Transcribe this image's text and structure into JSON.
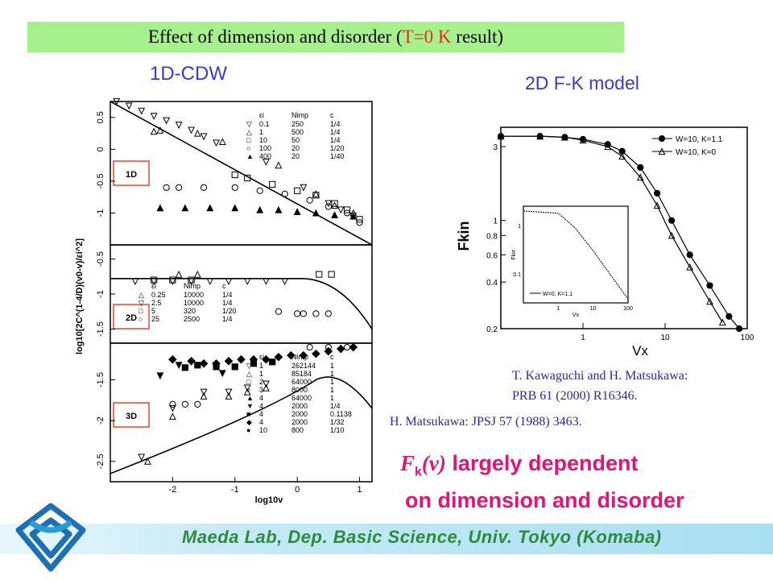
{
  "slide": {
    "title_prefix": "Effect of dimension and disorder (",
    "title_highlight": "T=0 K",
    "title_suffix": " result)",
    "label_left": "1D-CDW",
    "label_right": "2D F-K model",
    "ref_kawaguchi_line1": "T. Kawaguchi  and H. Matsukawa:",
    "ref_kawaguchi_line2": "PRB 61 (2000) R16346.",
    "ref_matsukawa": "H. Matsukawa: JPSJ 57 (1988) 3463.",
    "conclusion_F": "F",
    "conclusion_sub": "k",
    "conclusion_v": "(v)",
    "conclusion_rest": " largely dependent",
    "conclusion_line2": "on dimension and disorder",
    "footer": "Maeda Lab, Dep. Basic Science, Univ. Tokyo (Komaba)",
    "colors": {
      "title_band": "#a6f08e",
      "accent_red": "#e0301e",
      "heading_blue": "#3a3acb",
      "conclusion_magenta": "#e0157a",
      "footer_green": "#2e8a3e"
    }
  },
  "chart_data": [
    {
      "type": "scatter",
      "panel": "1D",
      "ylabel": "log10[2C^(1-4/D)(v0-v)/εi^2]",
      "xlabel": "log10v",
      "xlim": [
        -3,
        1.2
      ],
      "ylim": [
        -1.5,
        0.75
      ],
      "yticks": [
        "0.5",
        "0",
        "-0.5",
        "-1"
      ],
      "legend_header": [
        "εi",
        "Nimp",
        "c"
      ],
      "legend": [
        [
          "▽",
          "0.1",
          "250",
          "1/4"
        ],
        [
          "△",
          "1",
          "500",
          "1/4"
        ],
        [
          "□",
          "10",
          "50",
          "1/4"
        ],
        [
          "○",
          "100",
          "20",
          "1/20"
        ],
        [
          "▲",
          "400",
          "20",
          "1/40"
        ]
      ],
      "curve": [
        [
          -3,
          0.75
        ],
        [
          1.2,
          -1.5
        ]
      ],
      "series": [
        {
          "marker": "tri-down",
          "points": [
            [
              -2.9,
              0.75
            ],
            [
              -2.7,
              0.68
            ],
            [
              -2.5,
              0.6
            ],
            [
              -2.3,
              0.52
            ],
            [
              -2.1,
              0.45
            ],
            [
              -1.9,
              0.38
            ],
            [
              -1.7,
              0.3
            ],
            [
              -1.5,
              0.2
            ],
            [
              -1.3,
              0.1
            ],
            [
              -0.5,
              -0.2
            ],
            [
              0.1,
              -0.6
            ],
            [
              0.5,
              -0.85
            ],
            [
              0.7,
              -0.95
            ],
            [
              0.9,
              -1.05
            ]
          ]
        },
        {
          "marker": "tri-up",
          "points": [
            [
              -2.3,
              0.28
            ],
            [
              -2.2,
              0.3
            ],
            [
              -1.6,
              0.25
            ],
            [
              -1.2,
              0.12
            ],
            [
              -0.3,
              -0.25
            ],
            [
              0.3,
              -0.7
            ],
            [
              0.6,
              -0.88
            ],
            [
              0.9,
              -1.0
            ]
          ]
        },
        {
          "marker": "square",
          "points": [
            [
              -1.0,
              -0.4
            ],
            [
              -0.8,
              -0.45
            ],
            [
              -0.4,
              -0.55
            ],
            [
              0.0,
              -0.65
            ],
            [
              0.3,
              -0.72
            ],
            [
              0.6,
              -0.85
            ],
            [
              0.8,
              -0.95
            ],
            [
              1.0,
              -1.1
            ]
          ]
        },
        {
          "marker": "circle",
          "points": [
            [
              -2.1,
              -0.6
            ],
            [
              -1.9,
              -0.6
            ],
            [
              -1.5,
              -0.6
            ],
            [
              -1.0,
              -0.6
            ],
            [
              -0.6,
              -0.65
            ],
            [
              -0.2,
              -0.7
            ],
            [
              0.2,
              -0.8
            ],
            [
              0.5,
              -0.9
            ],
            [
              0.8,
              -1.0
            ],
            [
              1.0,
              -1.15
            ]
          ]
        },
        {
          "marker": "tri-filled",
          "points": [
            [
              -2.2,
              -0.92
            ],
            [
              -1.8,
              -0.92
            ],
            [
              -1.4,
              -0.92
            ],
            [
              -1.0,
              -0.92
            ],
            [
              -0.6,
              -0.95
            ],
            [
              -0.3,
              -0.95
            ],
            [
              0.0,
              -0.98
            ],
            [
              0.3,
              -1.0
            ],
            [
              0.6,
              -1.03
            ],
            [
              0.9,
              -1.05
            ]
          ]
        }
      ]
    },
    {
      "type": "scatter",
      "panel": "2D",
      "yticks": [
        "-0.5",
        "-1",
        "-1.5"
      ],
      "ylim": [
        -1.7,
        -0.3
      ],
      "legend_header": [
        "εi",
        "Nimp",
        "c"
      ],
      "legend": [
        [
          "△",
          "0.25",
          "10000",
          "1/4"
        ],
        [
          "▽",
          "2.5",
          "10000",
          "1/4"
        ],
        [
          "□",
          "5",
          "320",
          "1/20"
        ],
        [
          "○",
          "25",
          "2500",
          "1/4"
        ]
      ],
      "series": [
        {
          "marker": "tri-down",
          "points": [
            [
              -2.6,
              -0.82
            ],
            [
              -2.3,
              -0.82
            ],
            [
              -2.0,
              -0.82
            ],
            [
              -1.7,
              -0.82
            ],
            [
              -1.4,
              -0.82
            ],
            [
              -1.1,
              -0.82
            ],
            [
              -0.8,
              -0.82
            ],
            [
              -0.5,
              -0.82
            ],
            [
              -0.2,
              -0.82
            ]
          ]
        },
        {
          "marker": "tri-up",
          "points": [
            [
              -1.9,
              -0.72
            ],
            [
              -1.6,
              -0.72
            ]
          ]
        },
        {
          "marker": "square",
          "points": [
            [
              -2.3,
              -0.8
            ],
            [
              -2.0,
              -0.8
            ],
            [
              -1.7,
              -0.8
            ],
            [
              0.35,
              -0.72
            ],
            [
              0.55,
              -0.72
            ]
          ]
        },
        {
          "marker": "circle",
          "points": [
            [
              -0.3,
              -1.25
            ],
            [
              0.0,
              -1.28
            ],
            [
              0.1,
              -1.28
            ],
            [
              0.3,
              -1.28
            ],
            [
              0.5,
              -1.28
            ]
          ]
        }
      ]
    },
    {
      "type": "scatter",
      "panel": "3D",
      "xticks": [
        "-2",
        "-1",
        "0",
        "1"
      ],
      "yticks": [
        "-1.5",
        "-2",
        "-2.5"
      ],
      "ylim": [
        -2.75,
        -1.05
      ],
      "legend_header": [
        "εi",
        "Nimp",
        "c"
      ],
      "legend": [
        [
          "▽",
          "1",
          "262144",
          "1"
        ],
        [
          "△",
          "1",
          "85184",
          "1"
        ],
        [
          "□",
          "2",
          "64000",
          "1"
        ],
        [
          "○",
          "3",
          "8000",
          "1"
        ],
        [
          "▲",
          "4",
          "64000",
          "1"
        ],
        [
          "▼",
          "4",
          "2000",
          "1/4"
        ],
        [
          "■",
          "4",
          "2000",
          "0.1138"
        ],
        [
          "◆",
          "4",
          "2000",
          "1/32"
        ],
        [
          "●",
          "10",
          "800",
          "1/10"
        ]
      ],
      "series": [
        {
          "marker": "diamond",
          "points": [
            [
              -2.0,
              -1.25
            ],
            [
              -1.7,
              -1.27
            ],
            [
              -1.5,
              -1.3
            ],
            [
              -1.3,
              -1.3
            ],
            [
              -1.1,
              -1.27
            ],
            [
              -0.9,
              -1.25
            ],
            [
              -0.7,
              -1.25
            ],
            [
              -0.5,
              -1.25
            ],
            [
              -0.3,
              -1.22
            ],
            [
              -0.1,
              -1.2
            ],
            [
              0.1,
              -1.2
            ],
            [
              0.3,
              -1.18
            ],
            [
              0.5,
              -1.15
            ],
            [
              0.7,
              -1.12
            ],
            [
              0.9,
              -1.1
            ]
          ]
        },
        {
          "marker": "square-filled",
          "points": [
            [
              -1.8,
              -1.35
            ],
            [
              -1.6,
              -1.32
            ],
            [
              -1.3,
              -1.34
            ],
            [
              -1.0,
              -1.34
            ],
            [
              -0.7,
              -1.3
            ],
            [
              -0.4,
              -1.28
            ]
          ]
        },
        {
          "marker": "tri-filled-down",
          "points": [
            [
              -2.2,
              -1.45
            ],
            [
              -1.9,
              -1.32
            ],
            [
              -1.2,
              -1.42
            ]
          ]
        },
        {
          "marker": "circle",
          "points": [
            [
              -2.0,
              -1.8
            ],
            [
              -1.8,
              -1.8
            ],
            [
              -1.6,
              -1.8
            ],
            [
              0.2,
              -1.1
            ],
            [
              0.5,
              -1.1
            ],
            [
              0.8,
              -1.1
            ]
          ]
        },
        {
          "marker": "tri-down",
          "points": [
            [
              -2.5,
              -2.45
            ],
            [
              -2.0,
              -1.85
            ],
            [
              -1.5,
              -1.65
            ],
            [
              -1.1,
              -1.65
            ],
            [
              -0.8,
              -1.6
            ],
            [
              -0.5,
              -1.55
            ]
          ]
        },
        {
          "marker": "tri-up",
          "points": [
            [
              -2.4,
              -2.5
            ],
            [
              -2.0,
              -1.95
            ],
            [
              -1.5,
              -1.7
            ],
            [
              -1.1,
              -1.7
            ],
            [
              -0.8,
              -1.65
            ],
            [
              -0.5,
              -1.6
            ]
          ]
        }
      ]
    },
    {
      "type": "line",
      "panel": "2D F-K",
      "xlabel": "Vx",
      "ylabel": "Fkin",
      "xscale": "log",
      "yscale": "log",
      "xlim": [
        0.1,
        100
      ],
      "ylim": [
        0.2,
        4
      ],
      "xticks": [
        "1",
        "10",
        "100"
      ],
      "yticks": [
        "3",
        "1",
        "0.8",
        "0.6",
        "0.4",
        "0.2"
      ],
      "series": [
        {
          "name": "W=10, K=1.1",
          "marker": "filled-circle",
          "points": [
            [
              0.1,
              3.5
            ],
            [
              0.3,
              3.5
            ],
            [
              0.6,
              3.45
            ],
            [
              1,
              3.35
            ],
            [
              2,
              3.1
            ],
            [
              3,
              2.8
            ],
            [
              5,
              2.2
            ],
            [
              8,
              1.5
            ],
            [
              12,
              1.0
            ],
            [
              20,
              0.6
            ],
            [
              35,
              0.38
            ],
            [
              60,
              0.24
            ],
            [
              80,
              0.2
            ]
          ]
        },
        {
          "name": "W=10, K=0",
          "marker": "open-triangle",
          "points": [
            [
              0.1,
              3.5
            ],
            [
              0.3,
              3.5
            ],
            [
              0.6,
              3.45
            ],
            [
              1,
              3.3
            ],
            [
              2,
              3.0
            ],
            [
              3,
              2.6
            ],
            [
              5,
              1.9
            ],
            [
              8,
              1.25
            ],
            [
              12,
              0.8
            ],
            [
              20,
              0.5
            ],
            [
              35,
              0.3
            ],
            [
              50,
              0.22
            ]
          ]
        }
      ],
      "inset": {
        "xlabel": "Vx",
        "ylabel": "Fkin",
        "xticks": [
          "1",
          "10",
          "100"
        ],
        "yticks": [
          "1",
          "0.1"
        ],
        "series": [
          {
            "name": "W=0, K=1.1",
            "points": [
              [
                0.1,
                2.0
              ],
              [
                1,
                1.8
              ],
              [
                3,
                0.9
              ],
              [
                10,
                0.3
              ],
              [
                30,
                0.1
              ],
              [
                100,
                0.03
              ]
            ]
          }
        ]
      }
    }
  ]
}
